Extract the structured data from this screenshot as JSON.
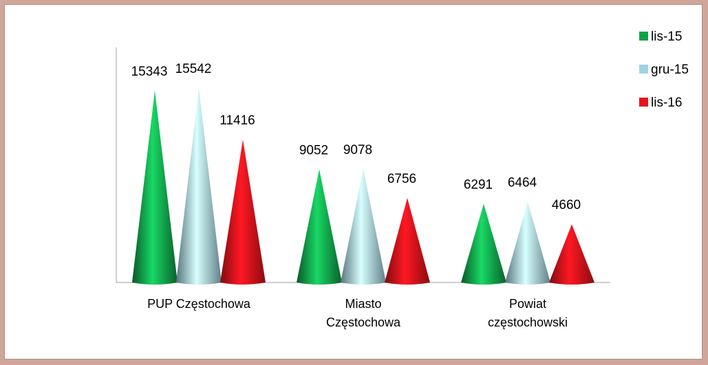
{
  "chart_data": {
    "type": "cone",
    "categories": [
      "PUP Częstochowa",
      "Miasto Częstochowa",
      "Powiat częstochowski"
    ],
    "series": [
      {
        "name": "lis-15",
        "color": "#12a04a",
        "values": [
          15343,
          9052,
          6291
        ]
      },
      {
        "name": "gru-15",
        "color": "#9fd3e3",
        "values": [
          15542,
          9078,
          6464
        ]
      },
      {
        "name": "lis-16",
        "color": "#e8121a",
        "values": [
          11416,
          6756,
          4660
        ]
      }
    ],
    "ylim": [
      0,
      20000
    ],
    "legend": "top-right"
  }
}
